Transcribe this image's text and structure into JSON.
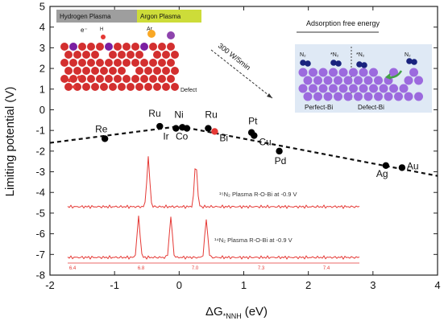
{
  "chart_data": {
    "type": "scatter",
    "title": "",
    "xlabel": "ΔG",
    "xlabel_subscript": "*NNH",
    "xlabel_unit": "(eV)",
    "ylabel": "Limiting potential (V)",
    "xlim": [
      -2,
      4
    ],
    "ylim": [
      -8,
      5
    ],
    "xticks": [
      -2,
      -1,
      0,
      1,
      2,
      3,
      4
    ],
    "yticks": [
      5,
      4,
      3,
      2,
      1,
      0,
      -1,
      -2,
      -3,
      -4,
      -5,
      -6,
      -7,
      -8
    ],
    "grid": false,
    "points": [
      {
        "label": "Re",
        "x": -1.15,
        "y": -1.4
      },
      {
        "label": "Ru",
        "x": -0.3,
        "y": -0.8
      },
      {
        "label": "Ir",
        "x": -0.05,
        "y": -0.9
      },
      {
        "label": "Ni",
        "x": 0.05,
        "y": -0.85
      },
      {
        "label": "Co",
        "x": 0.12,
        "y": -0.9
      },
      {
        "label": "Ru",
        "x": 0.45,
        "y": -0.9
      },
      {
        "label": "Bi",
        "x": 0.55,
        "y": -1.05,
        "highlight": true
      },
      {
        "label": "Pt",
        "x": 1.12,
        "y": -1.1
      },
      {
        "label": "Cu",
        "x": 1.16,
        "y": -1.25
      },
      {
        "label": "Pd",
        "x": 1.55,
        "y": -2.0
      },
      {
        "label": "Ag",
        "x": 3.2,
        "y": -2.7
      },
      {
        "label": "Au",
        "x": 3.45,
        "y": -2.8
      }
    ],
    "trend_lines": [
      {
        "x": [
          -2,
          0
        ],
        "y": [
          -1.6,
          -0.8
        ]
      },
      {
        "x": [
          0,
          4
        ],
        "y": [
          -0.8,
          -3.2
        ]
      }
    ],
    "highlight_color": "#e53935",
    "point_color": "#000000"
  },
  "insets": {
    "plasma": {
      "hydrogen_tag": "Hydrogen Plasma",
      "argon_tag": "Argon Plasma",
      "electron_label": "e⁻",
      "h_label": "H",
      "ar_label": "Ar",
      "defect_label": "Defect"
    },
    "arrow_label": "300 W/5min",
    "adsorption": {
      "title": "Adsorption free energy",
      "n2_left": "N₂",
      "n2_mid": "*N₂",
      "n2_mid2": "*N₂",
      "n2_right": "N₂",
      "perfect_label": "Perfect-Bi",
      "defect_label": "Defect-Bi"
    },
    "spectra": {
      "label_15": "¹⁵N₂ Plasma R-O-Bi at -0.9 V",
      "label_14": "¹⁴N₂ Plasma R-O-Bi at -0.9 V",
      "ppm_ticks": [
        "6.4",
        "6.8",
        "7.0",
        "7.3",
        "7.4"
      ],
      "color": "#e53935"
    }
  }
}
